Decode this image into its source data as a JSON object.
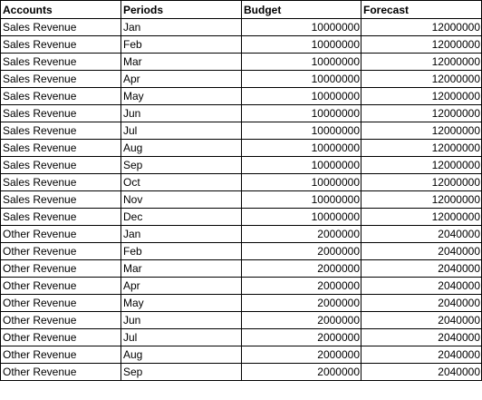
{
  "sheet": {
    "headers": [
      "Accounts",
      "Periods",
      "Budget",
      "Forecast"
    ],
    "rows": [
      [
        "Sales Revenue",
        "Jan",
        "10000000",
        "12000000"
      ],
      [
        "Sales Revenue",
        "Feb",
        "10000000",
        "12000000"
      ],
      [
        "Sales Revenue",
        "Mar",
        "10000000",
        "12000000"
      ],
      [
        "Sales Revenue",
        "Apr",
        "10000000",
        "12000000"
      ],
      [
        "Sales Revenue",
        "May",
        "10000000",
        "12000000"
      ],
      [
        "Sales Revenue",
        "Jun",
        "10000000",
        "12000000"
      ],
      [
        "Sales Revenue",
        "Jul",
        "10000000",
        "12000000"
      ],
      [
        "Sales Revenue",
        "Aug",
        "10000000",
        "12000000"
      ],
      [
        "Sales Revenue",
        "Sep",
        "10000000",
        "12000000"
      ],
      [
        "Sales Revenue",
        "Oct",
        "10000000",
        "12000000"
      ],
      [
        "Sales Revenue",
        "Nov",
        "10000000",
        "12000000"
      ],
      [
        "Sales Revenue",
        "Dec",
        "10000000",
        "12000000"
      ],
      [
        "Other Revenue",
        "Jan",
        "2000000",
        "2040000"
      ],
      [
        "Other Revenue",
        "Feb",
        "2000000",
        "2040000"
      ],
      [
        "Other Revenue",
        "Mar",
        "2000000",
        "2040000"
      ],
      [
        "Other Revenue",
        "Apr",
        "2000000",
        "2040000"
      ],
      [
        "Other Revenue",
        "May",
        "2000000",
        "2040000"
      ],
      [
        "Other Revenue",
        "Jun",
        "2000000",
        "2040000"
      ],
      [
        "Other Revenue",
        "Jul",
        "2000000",
        "2040000"
      ],
      [
        "Other Revenue",
        "Aug",
        "2000000",
        "2040000"
      ],
      [
        "Other Revenue",
        "Sep",
        "2000000",
        "2040000"
      ]
    ]
  }
}
